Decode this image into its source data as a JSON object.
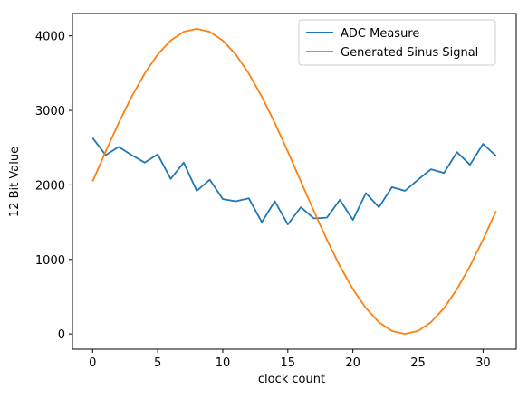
{
  "chart_data": {
    "type": "line",
    "title": "",
    "xlabel": "clock count",
    "ylabel": "12 Bit Value",
    "xlim": [
      -1.55,
      32.55
    ],
    "ylim": [
      -205,
      4300
    ],
    "xticks": [
      0,
      5,
      10,
      15,
      20,
      25,
      30
    ],
    "yticks": [
      0,
      1000,
      2000,
      3000,
      4000
    ],
    "grid": false,
    "legend_position": "top-right",
    "x": [
      0,
      1,
      2,
      3,
      4,
      5,
      6,
      7,
      8,
      9,
      10,
      11,
      12,
      13,
      14,
      15,
      16,
      17,
      18,
      19,
      20,
      21,
      22,
      23,
      24,
      25,
      26,
      27,
      28,
      29,
      30,
      31
    ],
    "series": [
      {
        "name": "ADC Measure",
        "color": "#1f77b4",
        "values": [
          2630,
          2400,
          2510,
          2400,
          2300,
          2410,
          2080,
          2300,
          1920,
          2070,
          1810,
          1780,
          1820,
          1500,
          1780,
          1470,
          1700,
          1550,
          1560,
          1800,
          1530,
          1890,
          1700,
          1970,
          1920,
          2070,
          2210,
          2160,
          2440,
          2270,
          2550,
          2390
        ]
      },
      {
        "name": "Generated Sinus Signal",
        "color": "#ff7f0e",
        "values": [
          2048,
          2447,
          2831,
          3185,
          3495,
          3750,
          3939,
          4056,
          4095,
          4056,
          3939,
          3750,
          3495,
          3185,
          2831,
          2447,
          2048,
          1649,
          1265,
          911,
          601,
          346,
          157,
          40,
          0,
          40,
          157,
          346,
          601,
          911,
          1265,
          1649
        ]
      }
    ]
  }
}
